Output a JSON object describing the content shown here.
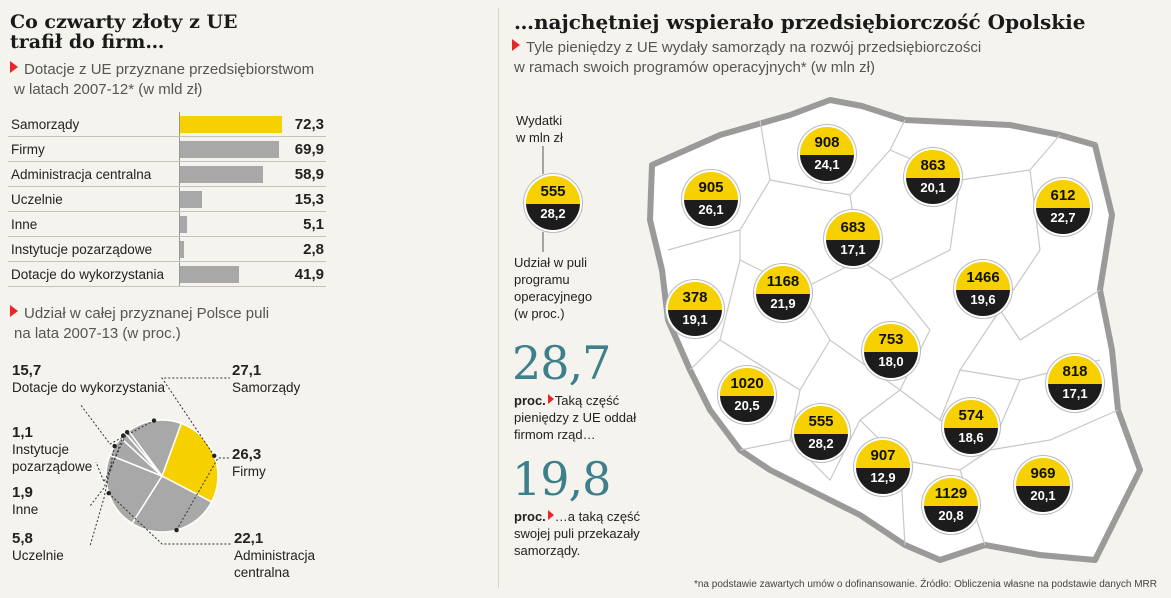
{
  "left": {
    "title_line1": "Co czwarty złoty z UE",
    "title_line2": "trafił do firm…",
    "bar_subtitle_line1": "Dotacje z UE przyznane przedsiębiorstwom",
    "bar_subtitle_line2": "w latach 2007-12* (w mld zł)",
    "pie_subtitle_line1": "Udział w całej przyznanej Polsce puli",
    "pie_subtitle_line2": "na lata 2007-13 (w proc.)"
  },
  "right": {
    "title": "…najchętniej wspierało przedsiębiorczość Opolskie",
    "subtitle_line1": "Tyle pieniędzy z UE wydały samorządy na rozwój przedsiębiorczości",
    "subtitle_line2": "w ramach swoich programów operacyjnych* (w mln zł)",
    "legend_top_line1": "Wydatki",
    "legend_top_line2": "w mln zł",
    "legend_bottom_line1": "Udział w puli",
    "legend_bottom_line2": "programu",
    "legend_bottom_line3": "operacyjnego",
    "legend_bottom_line4": "(w proc.)",
    "legend_badge_top": "555",
    "legend_badge_bottom": "28,2",
    "stat1_value": "28,7",
    "stat1_label": "proc.",
    "stat1_text_line1": "Taką część",
    "stat1_text_line2": "pieniędzy z UE oddał",
    "stat1_text_line3": "firmom rząd…",
    "stat2_value": "19,8",
    "stat2_label": "proc.",
    "stat2_text_line1": "…a taką część",
    "stat2_text_line2": "swojej puli przekazały",
    "stat2_text_line3": "samorządy."
  },
  "footer": "*na podstawie zawartych umów o dofinansowanie. Źródło: Obliczenia własne na podstawie danych MRR",
  "colors": {
    "yellow": "#f7d000",
    "gray": "#a8a8a8",
    "red": "#e8262a",
    "teal": "#3e7f8c",
    "dark": "#1c1c1c"
  },
  "chart_data": [
    {
      "type": "bar",
      "orientation": "horizontal",
      "categories": [
        "Samorządy",
        "Firmy",
        "Administracja centralna",
        "Uczelnie",
        "Inne",
        "Instytucje pozarządowe",
        "Dotacje do wykorzystania"
      ],
      "values": [
        72.3,
        69.9,
        58.9,
        15.3,
        5.1,
        2.8,
        41.9
      ],
      "value_labels": [
        "72,3",
        "69,9",
        "58,9",
        "15,3",
        "5,1",
        "2,8",
        "41,9"
      ],
      "highlight_index": 0
    },
    {
      "type": "pie",
      "slices": [
        {
          "label": "Samorządy",
          "value": 27.1,
          "value_label": "27,1"
        },
        {
          "label": "Firmy",
          "value": 26.3,
          "value_label": "26,3"
        },
        {
          "label": "Administracja centralna",
          "value": 22.1,
          "value_label": "22,1"
        },
        {
          "label": "Uczelnie",
          "value": 5.8,
          "value_label": "5,8"
        },
        {
          "label": "Inne",
          "value": 1.9,
          "value_label": "1,9"
        },
        {
          "label": "Instytucje pozarządowe",
          "value": 1.1,
          "value_label": "1,1"
        },
        {
          "label": "Dotacje do wykorzystania",
          "value": 15.7,
          "value_label": "15,7"
        }
      ]
    },
    {
      "type": "map",
      "regions": [
        {
          "spending": "908",
          "share": "24,1"
        },
        {
          "spending": "905",
          "share": "26,1"
        },
        {
          "spending": "863",
          "share": "20,1"
        },
        {
          "spending": "612",
          "share": "22,7"
        },
        {
          "spending": "683",
          "share": "17,1"
        },
        {
          "spending": "378",
          "share": "19,1"
        },
        {
          "spending": "1168",
          "share": "21,9"
        },
        {
          "spending": "1466",
          "share": "19,6"
        },
        {
          "spending": "753",
          "share": "18,0"
        },
        {
          "spending": "1020",
          "share": "20,5"
        },
        {
          "spending": "818",
          "share": "17,1"
        },
        {
          "spending": "555",
          "share": "28,2"
        },
        {
          "spending": "574",
          "share": "18,6"
        },
        {
          "spending": "907",
          "share": "12,9"
        },
        {
          "spending": "1129",
          "share": "20,8"
        },
        {
          "spending": "969",
          "share": "20,1"
        }
      ]
    }
  ]
}
